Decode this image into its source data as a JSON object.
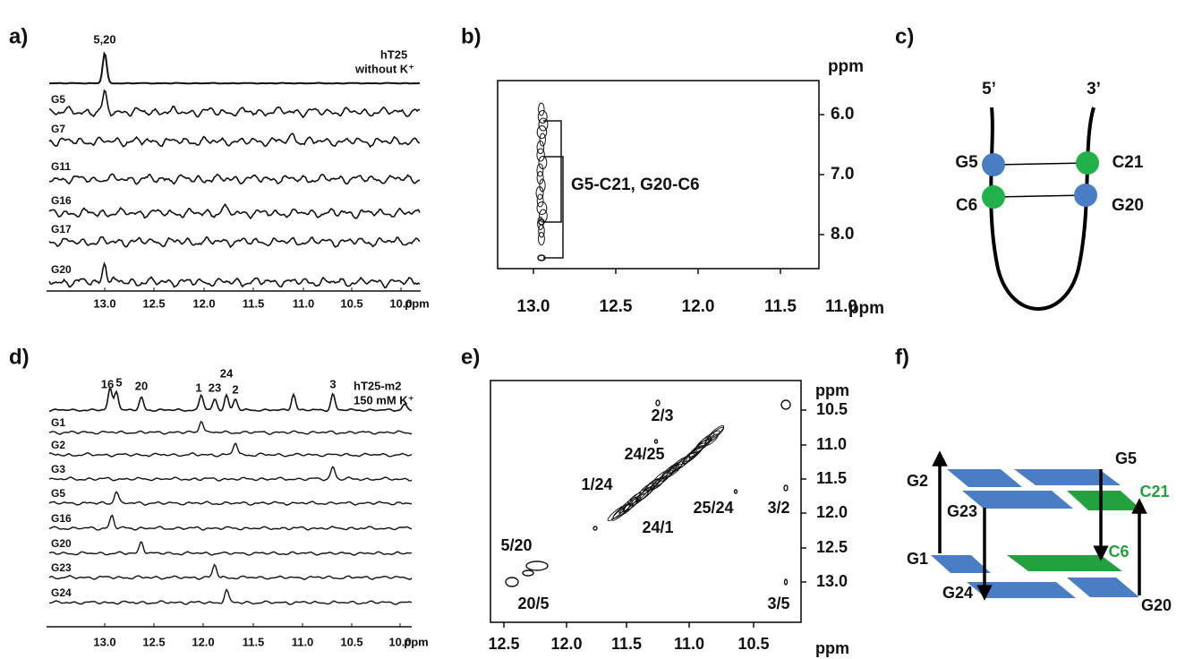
{
  "a": {
    "label": "a)",
    "peak_label": "5,20",
    "sample": "hT25",
    "condition": "without K⁺",
    "traces": [
      "G5",
      "G7",
      "G11",
      "G16",
      "G17",
      "G20"
    ],
    "xticks": [
      "13.0",
      "12.5",
      "12.0",
      "11.5",
      "11.0",
      "10.5",
      "10.0"
    ],
    "unit": "ppm"
  },
  "b": {
    "label": "b)",
    "unit": "ppm",
    "yticks": [
      "6.0",
      "7.0",
      "8.0"
    ],
    "xticks": [
      "13.0",
      "12.5",
      "12.0",
      "11.5",
      "11.0"
    ],
    "annotation": "G5-C21, G20-C6"
  },
  "c": {
    "label": "c)",
    "ends": [
      "5’",
      "3’"
    ],
    "nodes": [
      "G5",
      "C21",
      "C6",
      "G20"
    ]
  },
  "d": {
    "label": "d)",
    "peaks": [
      "16",
      "5",
      "20",
      "1",
      "23",
      "24",
      "2",
      "3"
    ],
    "sample": "hT25-m2",
    "condition": "150 mM K⁺",
    "traces": [
      "G1",
      "G2",
      "G3",
      "G5",
      "G16",
      "G20",
      "G23",
      "G24"
    ],
    "xticks": [
      "13.0",
      "12.5",
      "12.0",
      "11.5",
      "11.0",
      "10.5",
      "10.0"
    ],
    "unit": "ppm"
  },
  "e": {
    "label": "e)",
    "unit": "ppm",
    "cross_peaks": [
      "2/3",
      "24/25",
      "1/24",
      "25/24",
      "3/2",
      "24/1",
      "5/20",
      "20/5",
      "3/5"
    ],
    "yticks": [
      "10.5",
      "11.0",
      "11.5",
      "12.0",
      "12.5",
      "13.0"
    ],
    "xticks": [
      "12.5",
      "12.0",
      "11.5",
      "11.0",
      "10.5"
    ]
  },
  "f": {
    "label": "f)",
    "bases": [
      "G2",
      "G5",
      "C21",
      "G23",
      "G1",
      "C6",
      "G24",
      "G20"
    ]
  }
}
